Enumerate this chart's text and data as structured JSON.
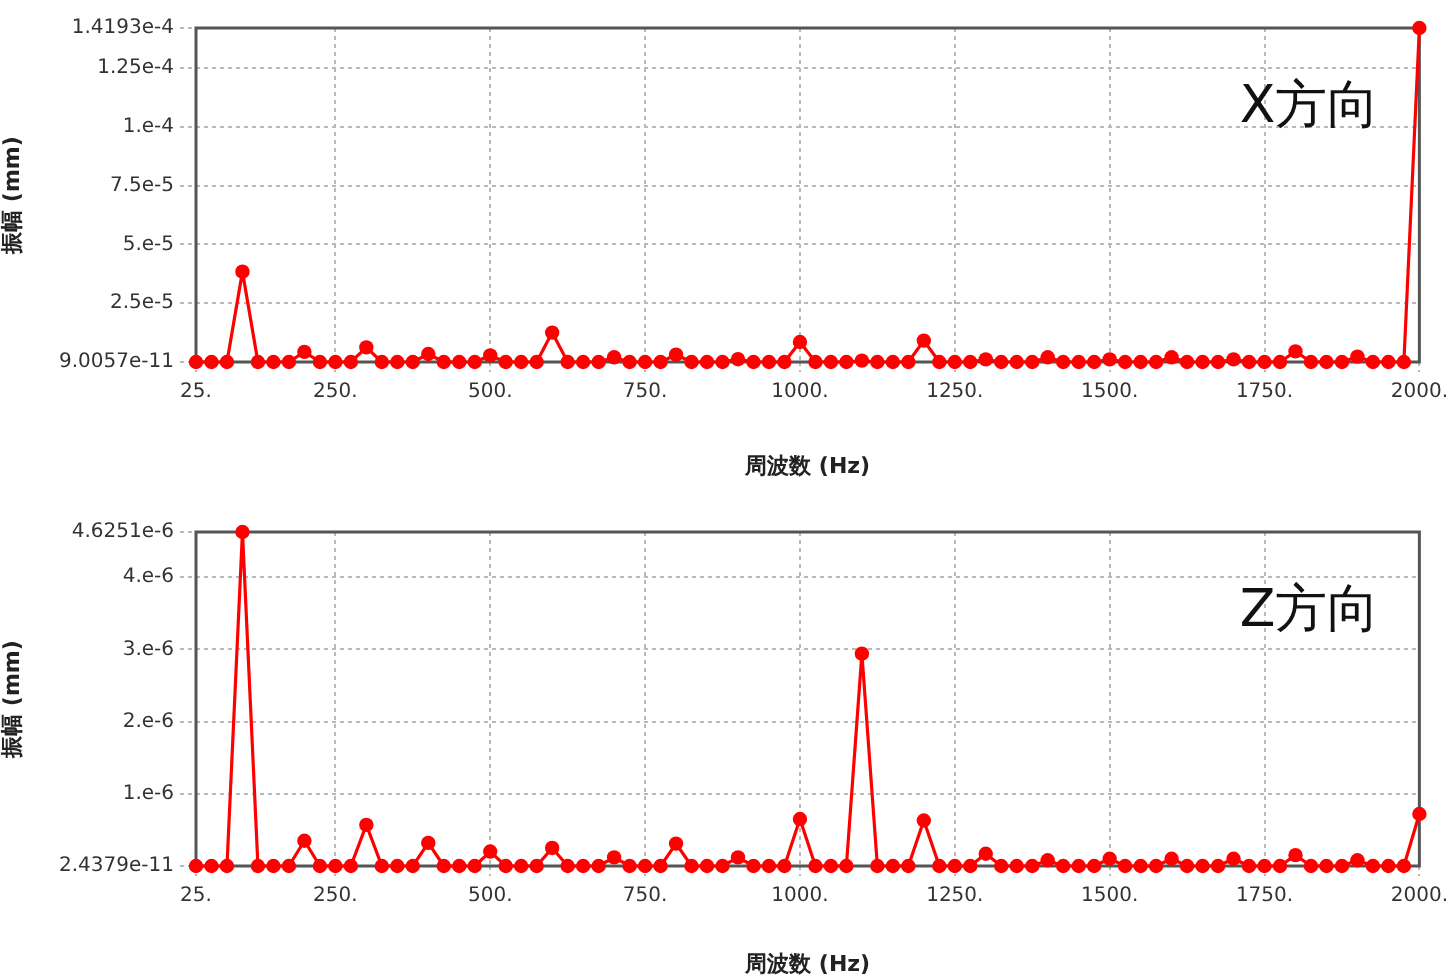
{
  "chart_data": [
    {
      "type": "line",
      "xlabel": "周波数 (Hz)",
      "ylabel": "振幅 (mm)",
      "annotations": [
        "X方向"
      ],
      "x": [
        25,
        50,
        75,
        100,
        125,
        150,
        175,
        200,
        225,
        250,
        275,
        300,
        325,
        350,
        375,
        400,
        425,
        450,
        475,
        500,
        525,
        550,
        575,
        600,
        625,
        650,
        675,
        700,
        725,
        750,
        775,
        800,
        825,
        850,
        875,
        900,
        925,
        950,
        975,
        1000,
        1025,
        1050,
        1075,
        1100,
        1125,
        1150,
        1175,
        1200,
        1225,
        1250,
        1275,
        1300,
        1325,
        1350,
        1375,
        1400,
        1425,
        1450,
        1475,
        1500,
        1525,
        1550,
        1575,
        1600,
        1625,
        1650,
        1675,
        1700,
        1725,
        1750,
        1775,
        1800,
        1825,
        1850,
        1875,
        1900,
        1925,
        1950,
        1975,
        2000
      ],
      "series": [
        {
          "color": "#ff0000",
          "values": [
            9.0057e-11,
            9.0057e-11,
            9.0057e-11,
            3.84e-05,
            9.0057e-11,
            9.0057e-11,
            9.0057e-11,
            4.3e-06,
            9.0057e-11,
            9.0057e-11,
            9.0057e-11,
            6.2e-06,
            9.0057e-11,
            9.0057e-11,
            9.0057e-11,
            3.4e-06,
            9.0057e-11,
            9.0057e-11,
            9.0057e-11,
            2.8e-06,
            9.0057e-11,
            9.0057e-11,
            9.0057e-11,
            1.25e-05,
            9.0057e-11,
            9.0057e-11,
            9.0057e-11,
            2e-06,
            9.0057e-11,
            9.0057e-11,
            9.0057e-11,
            3.1e-06,
            9.0057e-11,
            9.0057e-11,
            9.0057e-11,
            1.2e-06,
            9.0057e-11,
            9.0057e-11,
            9.0057e-11,
            8.5e-06,
            9.0057e-11,
            9.0057e-11,
            9.0057e-11,
            6e-07,
            9.0057e-11,
            9.0057e-11,
            9.0057e-11,
            9.1e-06,
            9.0057e-11,
            9.0057e-11,
            9.0057e-11,
            1.1e-06,
            9.0057e-11,
            9.0057e-11,
            9.0057e-11,
            2e-06,
            9.0057e-11,
            9.0057e-11,
            9.0057e-11,
            1.1e-06,
            9.0057e-11,
            9.0057e-11,
            9.0057e-11,
            2e-06,
            9.0057e-11,
            9.0057e-11,
            9.0057e-11,
            1.1e-06,
            9.0057e-11,
            9.0057e-11,
            9.0057e-11,
            4.5e-06,
            9.0057e-11,
            9.0057e-11,
            9.0057e-11,
            2.3e-06,
            9.0057e-11,
            9.0057e-11,
            9.0057e-11,
            0.00014193
          ]
        }
      ],
      "xlim": [
        25,
        2000
      ],
      "ylim": [
        9.0057e-11,
        0.00014193
      ],
      "xticks": [
        {
          "value": 25,
          "label": "25."
        },
        {
          "value": 250,
          "label": "250."
        },
        {
          "value": 500,
          "label": "500."
        },
        {
          "value": 750,
          "label": "750."
        },
        {
          "value": 1000,
          "label": "1000."
        },
        {
          "value": 1250,
          "label": "1250."
        },
        {
          "value": 1500,
          "label": "1500."
        },
        {
          "value": 1750,
          "label": "1750."
        },
        {
          "value": 2000,
          "label": "2000."
        }
      ],
      "yticks": [
        {
          "value": 9.0057e-11,
          "label": "9.0057e-11"
        },
        {
          "value": 2.5e-05,
          "label": "2.5e-5"
        },
        {
          "value": 5e-05,
          "label": "5.e-5"
        },
        {
          "value": 7.5e-05,
          "label": "7.5e-5"
        },
        {
          "value": 0.0001,
          "label": "1.e-4"
        },
        {
          "value": 0.000125,
          "label": "1.25e-4"
        },
        {
          "value": 0.00014193,
          "label": "1.4193e-4"
        }
      ],
      "grid": true,
      "marker": "circle",
      "line_style": "solid"
    },
    {
      "type": "line",
      "xlabel": "周波数 (Hz)",
      "ylabel": "振幅 (mm)",
      "annotations": [
        "Z方向"
      ],
      "x": [
        25,
        50,
        75,
        100,
        125,
        150,
        175,
        200,
        225,
        250,
        275,
        300,
        325,
        350,
        375,
        400,
        425,
        450,
        475,
        500,
        525,
        550,
        575,
        600,
        625,
        650,
        675,
        700,
        725,
        750,
        775,
        800,
        825,
        850,
        875,
        900,
        925,
        950,
        975,
        1000,
        1025,
        1050,
        1075,
        1100,
        1125,
        1150,
        1175,
        1200,
        1225,
        1250,
        1275,
        1300,
        1325,
        1350,
        1375,
        1400,
        1425,
        1450,
        1475,
        1500,
        1525,
        1550,
        1575,
        1600,
        1625,
        1650,
        1675,
        1700,
        1725,
        1750,
        1775,
        1800,
        1825,
        1850,
        1875,
        1900,
        1925,
        1950,
        1975,
        2000
      ],
      "series": [
        {
          "color": "#ff0000",
          "values": [
            2.4379e-11,
            2.4379e-11,
            2.4379e-11,
            4.6251e-06,
            2.4379e-11,
            2.4379e-11,
            2.4379e-11,
            3.5e-07,
            2.4379e-11,
            2.4379e-11,
            2.4379e-11,
            5.7e-07,
            2.4379e-11,
            2.4379e-11,
            2.4379e-11,
            3.2e-07,
            2.4379e-11,
            2.4379e-11,
            2.4379e-11,
            2e-07,
            2.4379e-11,
            2.4379e-11,
            2.4379e-11,
            2.5e-07,
            2.4379e-11,
            2.4379e-11,
            2.4379e-11,
            1.2e-07,
            2.4379e-11,
            2.4379e-11,
            2.4379e-11,
            3.1e-07,
            2.4379e-11,
            2.4379e-11,
            2.4379e-11,
            1.2e-07,
            2.4379e-11,
            2.4379e-11,
            2.4379e-11,
            6.5e-07,
            2.4379e-11,
            2.4379e-11,
            2.4379e-11,
            2.94e-06,
            2.4379e-11,
            2.4379e-11,
            2.4379e-11,
            6.3e-07,
            2.4379e-11,
            2.4379e-11,
            2.4379e-11,
            1.7e-07,
            2.4379e-11,
            2.4379e-11,
            2.4379e-11,
            8e-08,
            2.4379e-11,
            2.4379e-11,
            2.4379e-11,
            1e-07,
            2.4379e-11,
            2.4379e-11,
            2.4379e-11,
            1e-07,
            2.4379e-11,
            2.4379e-11,
            2.4379e-11,
            1e-07,
            2.4379e-11,
            2.4379e-11,
            2.4379e-11,
            1.5e-07,
            2.4379e-11,
            2.4379e-11,
            2.4379e-11,
            8e-08,
            2.4379e-11,
            2.4379e-11,
            2.4379e-11,
            7.2e-07
          ]
        }
      ],
      "xlim": [
        25,
        2000
      ],
      "ylim": [
        2.4379e-11,
        4.6251e-06
      ],
      "xticks": [
        {
          "value": 25,
          "label": "25."
        },
        {
          "value": 250,
          "label": "250."
        },
        {
          "value": 500,
          "label": "500."
        },
        {
          "value": 750,
          "label": "750."
        },
        {
          "value": 1000,
          "label": "1000."
        },
        {
          "value": 1250,
          "label": "1250."
        },
        {
          "value": 1500,
          "label": "1500."
        },
        {
          "value": 1750,
          "label": "1750."
        },
        {
          "value": 2000,
          "label": "2000."
        }
      ],
      "yticks": [
        {
          "value": 2.4379e-11,
          "label": "2.4379e-11"
        },
        {
          "value": 1e-06,
          "label": "1.e-6"
        },
        {
          "value": 2e-06,
          "label": "2.e-6"
        },
        {
          "value": 3e-06,
          "label": "3.e-6"
        },
        {
          "value": 4e-06,
          "label": "4.e-6"
        },
        {
          "value": 4.6251e-06,
          "label": "4.6251e-6"
        }
      ],
      "grid": true,
      "marker": "circle",
      "line_style": "solid"
    }
  ]
}
